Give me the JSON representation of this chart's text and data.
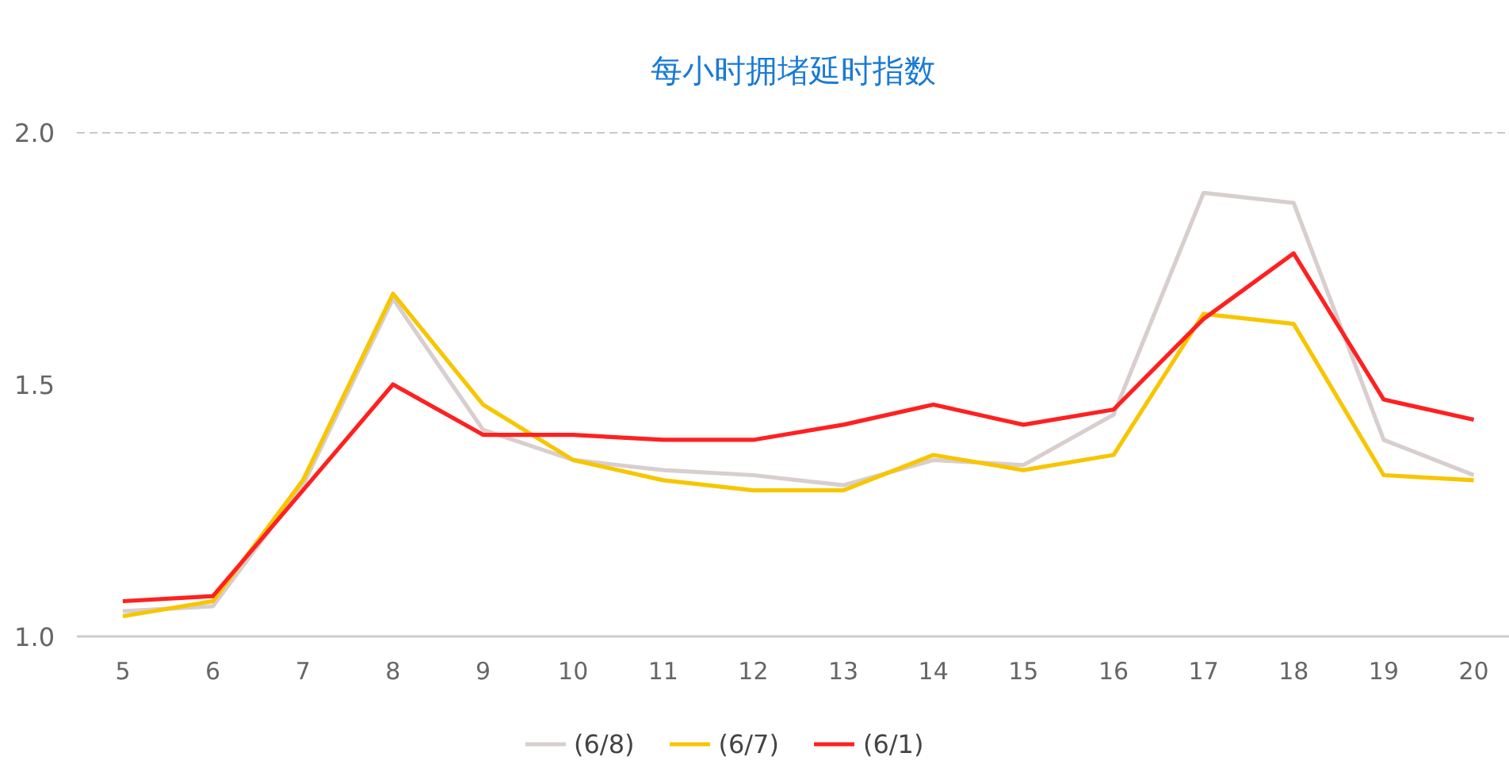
{
  "chart_data": {
    "type": "line",
    "title": "每小时拥堵延时指数",
    "categories": [
      "5",
      "6",
      "7",
      "8",
      "9",
      "10",
      "11",
      "12",
      "13",
      "14",
      "15",
      "16",
      "17",
      "18",
      "19",
      "20"
    ],
    "series": [
      {
        "name": "(6/8)",
        "color": "#d8cece",
        "values": [
          1.05,
          1.06,
          1.3,
          1.67,
          1.41,
          1.35,
          1.33,
          1.32,
          1.3,
          1.35,
          1.34,
          1.44,
          1.88,
          1.86,
          1.39,
          1.32
        ]
      },
      {
        "name": "(6/7)",
        "color": "#f7c600",
        "values": [
          1.04,
          1.07,
          1.31,
          1.68,
          1.46,
          1.35,
          1.31,
          1.29,
          1.29,
          1.36,
          1.33,
          1.36,
          1.64,
          1.62,
          1.32,
          1.31
        ]
      },
      {
        "name": "(6/1)",
        "color": "#ff2020",
        "values": [
          1.07,
          1.08,
          1.29,
          1.5,
          1.4,
          1.4,
          1.39,
          1.39,
          1.42,
          1.46,
          1.42,
          1.45,
          1.63,
          1.76,
          1.47,
          1.43
        ]
      }
    ],
    "ylim": [
      1.0,
      2.0
    ],
    "yticks": [
      {
        "value": 1.0,
        "label": "1.0"
      },
      {
        "value": 1.5,
        "label": "1.5"
      },
      {
        "value": 2.0,
        "label": "2.0"
      }
    ],
    "ref_lines": [
      {
        "axis": "y",
        "value": 2.0,
        "color": "#aaaaaa",
        "line_style": "dashed"
      }
    ],
    "legend": "bottom",
    "line_style": "solid"
  }
}
